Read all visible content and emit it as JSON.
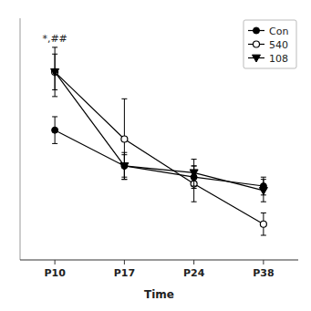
{
  "chart_data": {
    "type": "line",
    "categories": [
      "P10",
      "P17",
      "P24",
      "P38"
    ],
    "xlabel": "Time",
    "ylim": [
      0,
      1.08
    ],
    "tick_labels": "x",
    "grid": false,
    "legend": "upper right",
    "annotations": [
      {
        "text": "*,##",
        "x": "P10"
      }
    ],
    "series": [
      {
        "name": "Con",
        "color": "black",
        "marker": "circle",
        "line_style": "solid",
        "values": [
          0.58,
          0.42,
          0.37,
          0.33
        ],
        "errors": [
          0.06,
          0.05,
          0.05,
          0.04
        ]
      },
      {
        "name": "540",
        "color": "black",
        "marker": "circle-open",
        "line_style": "solid",
        "values": [
          0.84,
          0.54,
          0.34,
          0.16
        ],
        "errors": [
          0.11,
          0.18,
          0.08,
          0.05
        ]
      },
      {
        "name": "108",
        "color": "black",
        "marker": "triangle-down",
        "line_style": "solid",
        "values": [
          0.84,
          0.42,
          0.39,
          0.31
        ],
        "errors": [
          0.08,
          0.06,
          0.06,
          0.05
        ]
      }
    ]
  }
}
